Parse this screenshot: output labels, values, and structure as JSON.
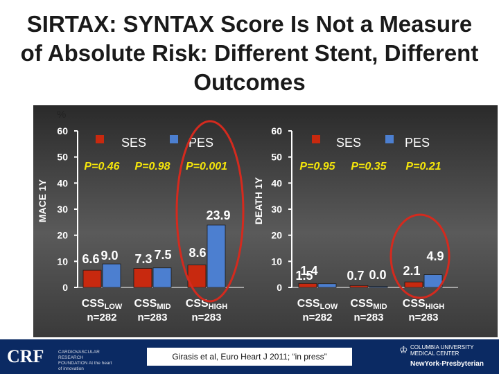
{
  "title": "SIRTAX: SYNTAX Score Is Not a Measure of Absolute Risk: Different Stent, Different Outcomes",
  "citation": "Girasis et al, Euro Heart J 2011; “in press”",
  "footer": {
    "crf_logo": "CRF",
    "crf_subtitle": "CARDIOVASCULAR RESEARCH FOUNDATION At the heart of innovation",
    "cu_logo": "COLUMBIA UNIVERSITY MEDICAL CENTER",
    "nyp_logo": "NewYork-Presbyterian"
  },
  "colors": {
    "ses": "#c8290f",
    "pes": "#4c7fd0",
    "axis": "#ffffff",
    "circle": "#d42a1e"
  },
  "chart_data": [
    {
      "type": "bar",
      "ylabel": "MACE 1Y",
      "yunit": "%",
      "ylim": [
        0,
        60
      ],
      "yticks": [
        0,
        10,
        20,
        30,
        40,
        50,
        60
      ],
      "legend": [
        "SES",
        "PES"
      ],
      "categories": [
        "CSSLOW n=282",
        "CSSMID n=283",
        "CSSHIGH n=283"
      ],
      "category_labels": [
        {
          "main": "CSS",
          "sub": "LOW",
          "n": "n=282"
        },
        {
          "main": "CSS",
          "sub": "MID",
          "n": "n=283"
        },
        {
          "main": "CSS",
          "sub": "HIGH",
          "n": "n=283"
        }
      ],
      "series": [
        {
          "name": "SES",
          "values": [
            6.6,
            7.3,
            8.6
          ]
        },
        {
          "name": "PES",
          "values": [
            9.0,
            7.5,
            23.9
          ]
        }
      ],
      "value_labels": [
        "6.6",
        "9.0",
        "7.3",
        "7.5",
        "8.6",
        "23.9"
      ],
      "pvalues": [
        "P=0.46",
        "P=0.98",
        "P=0.001"
      ],
      "highlight_category": 2
    },
    {
      "type": "bar",
      "ylabel": "DEATH 1Y",
      "ylim": [
        0,
        60
      ],
      "yticks": [
        0,
        10,
        20,
        30,
        40,
        50,
        60
      ],
      "legend": [
        "SES",
        "PES"
      ],
      "categories": [
        "CSSLOW n=282",
        "CSSMID n=283",
        "CSSHIGH n=283"
      ],
      "category_labels": [
        {
          "main": "CSS",
          "sub": "LOW",
          "n": "n=282"
        },
        {
          "main": "CSS",
          "sub": "MID",
          "n": "n=283"
        },
        {
          "main": "CSS",
          "sub": "HIGH",
          "n": "n=283"
        }
      ],
      "series": [
        {
          "name": "SES",
          "values": [
            1.5,
            0.7,
            2.1
          ]
        },
        {
          "name": "PES",
          "values": [
            1.4,
            0.0,
            4.9
          ]
        }
      ],
      "value_labels": [
        "1.5",
        "1.4",
        "0.7",
        "0.0",
        "2.1",
        "4.9"
      ],
      "pvalues": [
        "P=0.95",
        "P=0.35",
        "P=0.21"
      ],
      "highlight_category": 2
    }
  ]
}
